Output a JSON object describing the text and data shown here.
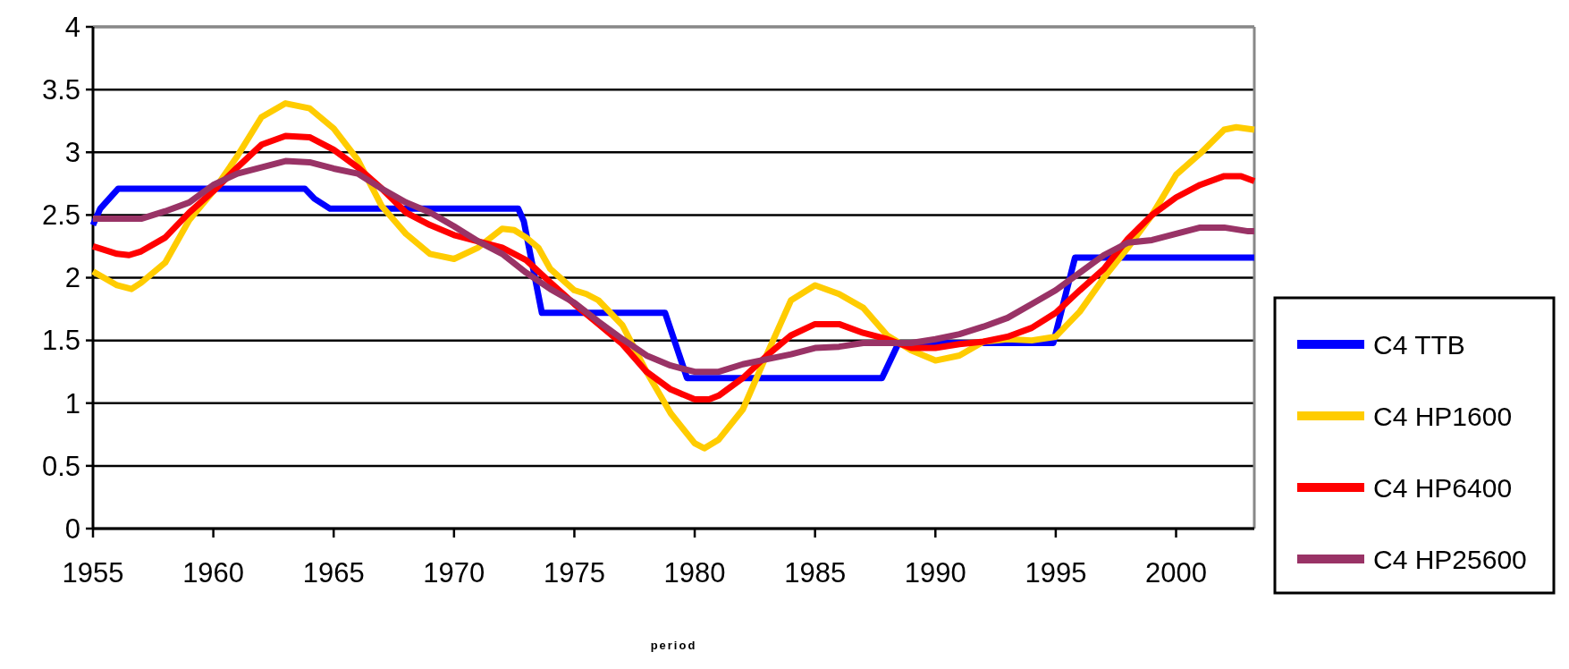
{
  "chart_data": {
    "type": "line",
    "xlabel": "period",
    "xlim": [
      1955,
      2003.25
    ],
    "xticks": [
      1955,
      1960,
      1965,
      1970,
      1975,
      1980,
      1985,
      1990,
      1995,
      2000
    ],
    "ylim": [
      0,
      4
    ],
    "yticks": [
      0,
      0.5,
      1,
      1.5,
      2,
      2.5,
      3,
      3.5,
      4
    ],
    "grid": "y",
    "legend": "right",
    "marker": "none",
    "line_style": "solid",
    "series": [
      {
        "name": "C4 TTB",
        "color": "#0000ff",
        "x": [
          1955,
          1955.3,
          1956.05,
          1963.8,
          1964.2,
          1964.85,
          1972.67,
          1972.9,
          1973.65,
          1978.77,
          1979.68,
          1987.78,
          1988.47,
          1994.9,
          1995.8,
          2003.25
        ],
        "values": [
          2.42,
          2.55,
          2.71,
          2.71,
          2.63,
          2.55,
          2.55,
          2.45,
          1.72,
          1.72,
          1.2,
          1.2,
          1.48,
          1.48,
          2.16,
          2.16
        ]
      },
      {
        "name": "C4 HP1600",
        "color": "#ffcc00",
        "x": [
          1955,
          1956,
          1956.6,
          1957,
          1958,
          1959,
          1960,
          1961,
          1962,
          1963,
          1964,
          1965,
          1966,
          1967,
          1968,
          1969,
          1970,
          1971,
          1972,
          1972.5,
          1973,
          1973.5,
          1974,
          1975,
          1975.5,
          1976,
          1977,
          1978,
          1979,
          1980,
          1980.4,
          1981,
          1982,
          1983,
          1984,
          1985,
          1986,
          1987,
          1988,
          1989,
          1990,
          1991,
          1992,
          1993,
          1994,
          1995,
          1996,
          1997,
          1998,
          1999,
          2000,
          2001,
          2002,
          2002.5,
          2003.25
        ],
        "values": [
          2.05,
          1.94,
          1.91,
          1.96,
          2.12,
          2.46,
          2.69,
          2.97,
          3.28,
          3.39,
          3.35,
          3.19,
          2.94,
          2.57,
          2.35,
          2.19,
          2.15,
          2.24,
          2.39,
          2.38,
          2.32,
          2.24,
          2.07,
          1.9,
          1.87,
          1.82,
          1.62,
          1.25,
          0.92,
          0.68,
          0.64,
          0.71,
          0.95,
          1.39,
          1.82,
          1.94,
          1.87,
          1.76,
          1.54,
          1.42,
          1.34,
          1.38,
          1.49,
          1.51,
          1.5,
          1.53,
          1.73,
          2.0,
          2.24,
          2.5,
          2.82,
          2.99,
          3.18,
          3.2,
          3.18
        ]
      },
      {
        "name": "C4 HP6400",
        "color": "#ff0000",
        "x": [
          1955,
          1956,
          1956.5,
          1957,
          1958,
          1959,
          1960,
          1961,
          1962,
          1963,
          1964,
          1965,
          1966,
          1967,
          1968,
          1969,
          1970,
          1971,
          1972,
          1973,
          1973.9,
          1975,
          1976,
          1977,
          1978,
          1979,
          1980,
          1980.6,
          1981,
          1982,
          1983,
          1984,
          1985,
          1986,
          1987,
          1988,
          1989,
          1990,
          1991,
          1992,
          1993,
          1994,
          1995,
          1996,
          1997,
          1998,
          1999,
          2000,
          2001,
          2002,
          2002.7,
          2003.25
        ],
        "values": [
          2.25,
          2.19,
          2.18,
          2.21,
          2.32,
          2.52,
          2.69,
          2.88,
          3.06,
          3.13,
          3.12,
          3.02,
          2.88,
          2.71,
          2.52,
          2.42,
          2.34,
          2.29,
          2.24,
          2.14,
          1.98,
          1.79,
          1.63,
          1.47,
          1.25,
          1.11,
          1.03,
          1.03,
          1.06,
          1.2,
          1.38,
          1.54,
          1.63,
          1.63,
          1.56,
          1.51,
          1.44,
          1.44,
          1.47,
          1.49,
          1.53,
          1.6,
          1.72,
          1.9,
          2.07,
          2.31,
          2.5,
          2.64,
          2.74,
          2.81,
          2.81,
          2.77
        ]
      },
      {
        "name": "C4 HP25600",
        "color": "#993366",
        "x": [
          1955,
          1957,
          1958,
          1959,
          1960,
          1961,
          1962,
          1963,
          1964,
          1965,
          1966,
          1967,
          1968,
          1969,
          1970,
          1971,
          1972,
          1973,
          1974,
          1975,
          1976,
          1977,
          1978,
          1979,
          1980,
          1981,
          1982,
          1983,
          1984,
          1985,
          1986,
          1987,
          1988,
          1989,
          1990,
          1991,
          1992,
          1993,
          1994,
          1995,
          1996,
          1997,
          1998,
          1999,
          2000,
          2001,
          2002,
          2003,
          2003.25
        ],
        "values": [
          2.47,
          2.47,
          2.53,
          2.6,
          2.74,
          2.83,
          2.88,
          2.93,
          2.92,
          2.87,
          2.83,
          2.71,
          2.6,
          2.52,
          2.41,
          2.29,
          2.19,
          2.04,
          1.91,
          1.8,
          1.65,
          1.51,
          1.38,
          1.3,
          1.25,
          1.25,
          1.31,
          1.35,
          1.39,
          1.44,
          1.45,
          1.48,
          1.48,
          1.48,
          1.51,
          1.55,
          1.61,
          1.68,
          1.79,
          1.9,
          2.04,
          2.18,
          2.28,
          2.3,
          2.35,
          2.4,
          2.4,
          2.37,
          2.37
        ]
      }
    ]
  }
}
